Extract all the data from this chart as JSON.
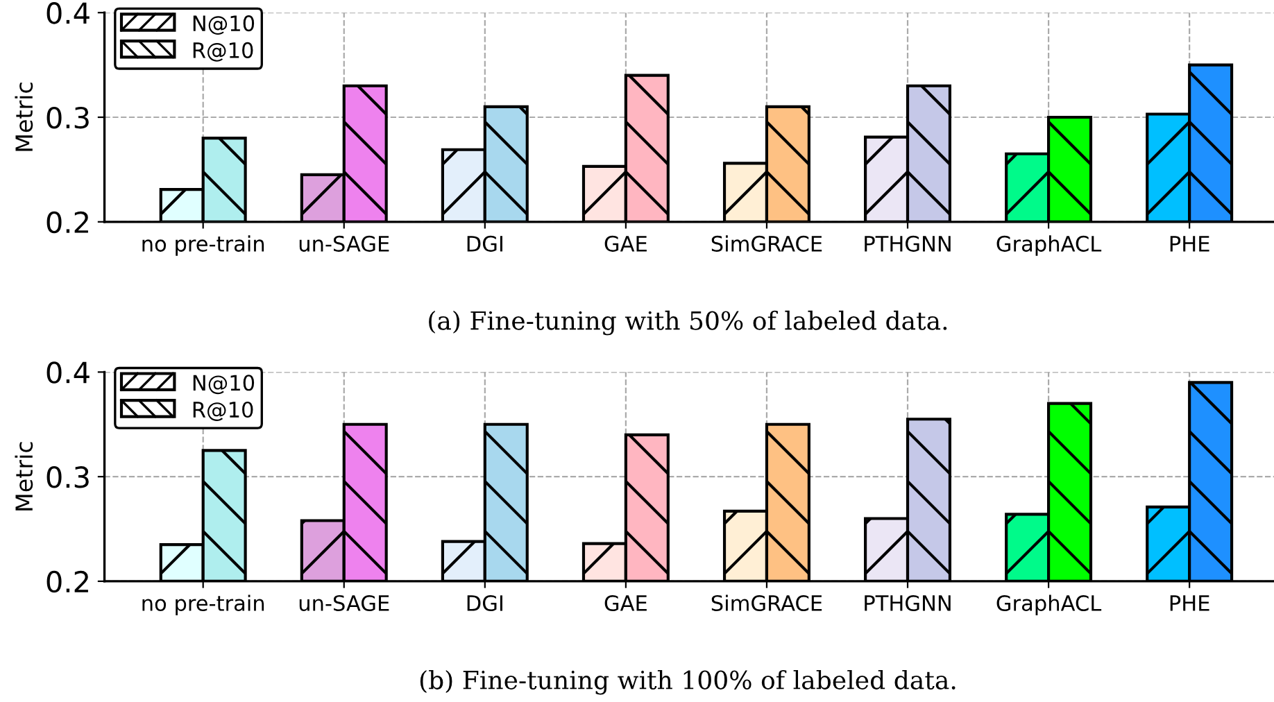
{
  "chart_data": [
    {
      "type": "bar",
      "ylabel": "Metric",
      "categories": [
        "no pre-train",
        "un-SAGE",
        "DGI",
        "GAE",
        "SimGRACE",
        "PTHGNN",
        "GraphACL",
        "PHE"
      ],
      "ylim": [
        0.2,
        0.4
      ],
      "yticks": [
        0.2,
        0.3,
        0.4
      ],
      "grid": true,
      "legend": "top left",
      "annotations": [
        "(a) Fine-tuning with 50% of labeled data."
      ],
      "series": [
        {
          "name": "N@10",
          "colors": [
            "#e0ffff",
            "#dda0dd",
            "#e3effb",
            "#ffe4e1",
            "#ffefd5",
            "#ebe6f5",
            "#00fa8a",
            "#00bfff"
          ],
          "values": [
            0.231,
            0.245,
            0.269,
            0.253,
            0.256,
            0.281,
            0.265,
            0.303
          ]
        },
        {
          "name": "R@10",
          "colors": [
            "#afeeee",
            "#ee82ee",
            "#a8d8ee",
            "#ffb6c1",
            "#fec183",
            "#c5c8e8",
            "#00ff00",
            "#1e90ff"
          ],
          "values": [
            0.28,
            0.33,
            0.31,
            0.34,
            0.31,
            0.33,
            0.3,
            0.35
          ]
        }
      ]
    },
    {
      "type": "bar",
      "ylabel": "Metric",
      "categories": [
        "no pre-train",
        "un-SAGE",
        "DGI",
        "GAE",
        "SimGRACE",
        "PTHGNN",
        "GraphACL",
        "PHE"
      ],
      "ylim": [
        0.2,
        0.4
      ],
      "yticks": [
        0.2,
        0.3,
        0.4
      ],
      "grid": true,
      "legend": "top left",
      "annotations": [
        "(b) Fine-tuning with 100% of labeled data."
      ],
      "series": [
        {
          "name": "N@10",
          "colors": [
            "#e0ffff",
            "#dda0dd",
            "#e3effb",
            "#ffe4e1",
            "#ffefd5",
            "#ebe6f5",
            "#00fa8a",
            "#00bfff"
          ],
          "values": [
            0.235,
            0.258,
            0.238,
            0.236,
            0.267,
            0.26,
            0.264,
            0.271
          ]
        },
        {
          "name": "R@10",
          "colors": [
            "#afeeee",
            "#ee82ee",
            "#a8d8ee",
            "#ffb6c1",
            "#fec183",
            "#c5c8e8",
            "#00ff00",
            "#1e90ff"
          ],
          "values": [
            0.325,
            0.35,
            0.35,
            0.34,
            0.35,
            0.355,
            0.37,
            0.39
          ]
        }
      ]
    }
  ]
}
